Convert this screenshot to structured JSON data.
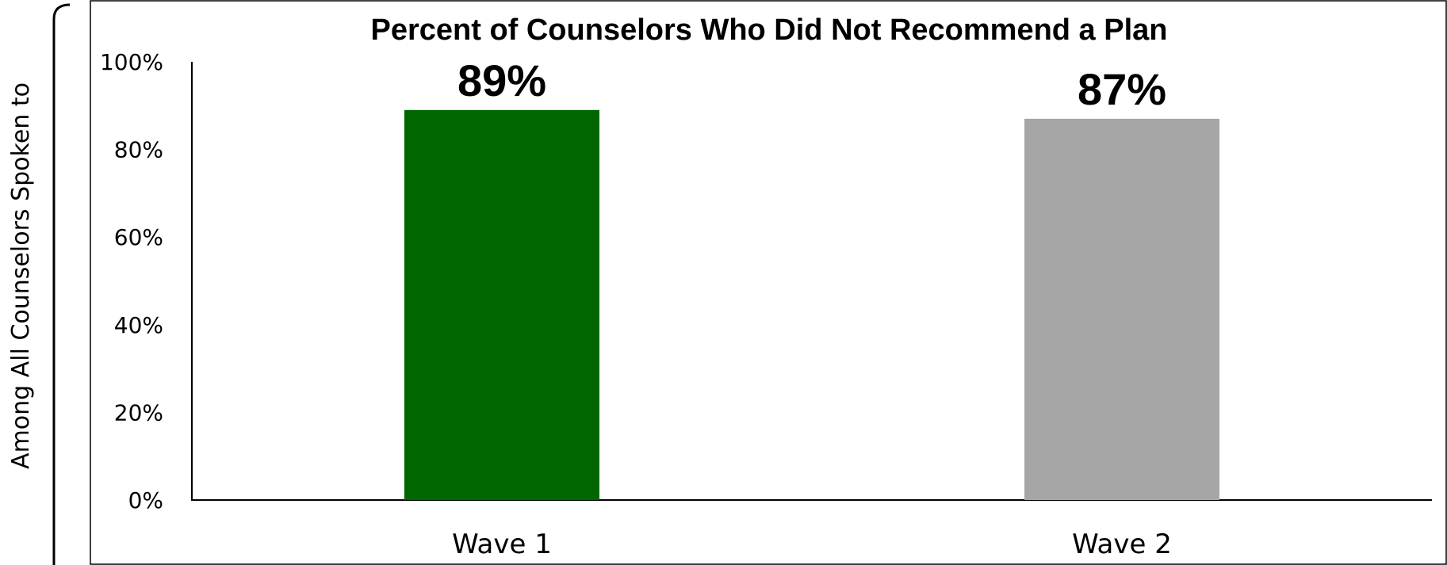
{
  "side_label": "Among All Counselors Spoken to",
  "chart_data": {
    "type": "bar",
    "title": "Percent of Counselors Who Did Not Recommend a Plan",
    "xlabel": "",
    "ylabel": "",
    "categories": [
      "Wave 1",
      "Wave 2"
    ],
    "values": [
      89,
      87
    ],
    "data_labels": [
      "89%",
      "87%"
    ],
    "bar_colors": [
      "#006600",
      "#a6a6a6"
    ],
    "ylim": [
      0,
      100
    ],
    "yticks": [
      0,
      20,
      40,
      60,
      80,
      100
    ],
    "ytick_labels": [
      "0%",
      "20%",
      "40%",
      "60%",
      "80%",
      "100%"
    ],
    "grid": false,
    "legend": "none"
  }
}
